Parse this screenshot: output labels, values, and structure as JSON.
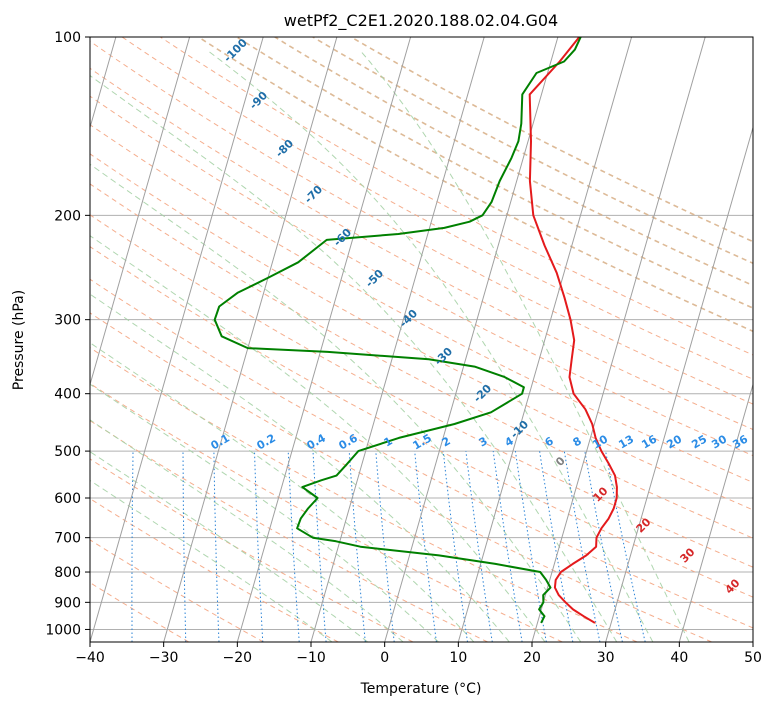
{
  "chart_data": {
    "type": "line",
    "title": "wetPf2_C2E1.2020.188.02.04.G04",
    "xlabel": "Temperature (°C)",
    "ylabel": "Pressure (hPa)",
    "xlim": [
      -40,
      50
    ],
    "ylim": [
      1050,
      100
    ],
    "y_scale": "log",
    "grid": true,
    "x_ticks": [
      -40,
      -30,
      -20,
      -10,
      0,
      10,
      20,
      30,
      40,
      50
    ],
    "y_ticks": [
      100,
      200,
      300,
      400,
      500,
      600,
      700,
      800,
      900,
      1000
    ],
    "series": [
      {
        "color": "#e41a1c",
        "points": [
          [
            27.8,
            975
          ],
          [
            26.0,
            950
          ],
          [
            24.3,
            925
          ],
          [
            23.0,
            900
          ],
          [
            21.8,
            875
          ],
          [
            21.0,
            850
          ],
          [
            20.8,
            825
          ],
          [
            21.2,
            800
          ],
          [
            22.5,
            775
          ],
          [
            24.0,
            750
          ],
          [
            25.0,
            725
          ],
          [
            24.7,
            700
          ],
          [
            25.0,
            675
          ],
          [
            25.6,
            650
          ],
          [
            25.9,
            625
          ],
          [
            25.9,
            600
          ],
          [
            25.5,
            575
          ],
          [
            24.8,
            550
          ],
          [
            23.5,
            525
          ],
          [
            22.0,
            500
          ],
          [
            20.7,
            475
          ],
          [
            19.7,
            450
          ],
          [
            18.2,
            425
          ],
          [
            16.0,
            400
          ],
          [
            14.8,
            375
          ],
          [
            14.4,
            350
          ],
          [
            14.0,
            325
          ],
          [
            12.7,
            300
          ],
          [
            11.0,
            275
          ],
          [
            9.0,
            250
          ],
          [
            6.3,
            225
          ],
          [
            3.6,
            200
          ],
          [
            1.8,
            175
          ],
          [
            0.4,
            150
          ],
          [
            -1.6,
            125
          ],
          [
            1.2,
            110
          ],
          [
            2.9,
            100
          ]
        ]
      },
      {
        "color": "#008000",
        "points": [
          [
            20.5,
            975
          ],
          [
            20.7,
            950
          ],
          [
            19.7,
            925
          ],
          [
            20.0,
            900
          ],
          [
            19.7,
            875
          ],
          [
            20.4,
            850
          ],
          [
            19.5,
            825
          ],
          [
            18.4,
            800
          ],
          [
            12.0,
            775
          ],
          [
            4.0,
            750
          ],
          [
            -7.0,
            725
          ],
          [
            -10.5,
            710
          ],
          [
            -13.8,
            700
          ],
          [
            -16.3,
            675
          ],
          [
            -16.2,
            650
          ],
          [
            -15.6,
            625
          ],
          [
            -14.7,
            600
          ],
          [
            -17.2,
            575
          ],
          [
            -14.9,
            560
          ],
          [
            -13.0,
            550
          ],
          [
            -12.0,
            525
          ],
          [
            -11.0,
            500
          ],
          [
            -6.0,
            475
          ],
          [
            1.0,
            450
          ],
          [
            5.5,
            430
          ],
          [
            9.0,
            400
          ],
          [
            9.0,
            390
          ],
          [
            6.0,
            375
          ],
          [
            1.5,
            360
          ],
          [
            -5.0,
            350
          ],
          [
            -19.0,
            340
          ],
          [
            -30.0,
            335
          ],
          [
            -34.0,
            320
          ],
          [
            -35.6,
            300
          ],
          [
            -35.5,
            285
          ],
          [
            -33.5,
            270
          ],
          [
            -30.0,
            255
          ],
          [
            -26.5,
            240
          ],
          [
            -23.5,
            220
          ],
          [
            -14.0,
            215
          ],
          [
            -8.0,
            210
          ],
          [
            -4.8,
            205
          ],
          [
            -3.3,
            200
          ],
          [
            -2.6,
            190
          ],
          [
            -2.3,
            175
          ],
          [
            -1.6,
            160
          ],
          [
            -1.3,
            150
          ],
          [
            -1.6,
            140
          ],
          [
            -2.6,
            125
          ],
          [
            -1.5,
            115
          ],
          [
            1.8,
            110
          ],
          [
            2.8,
            105
          ],
          [
            3.1,
            100
          ]
        ]
      }
    ],
    "annotations": {
      "mixing_ratio_labels": [
        "0.1",
        "0.2",
        "0.4",
        "0.6",
        "1",
        "1.5",
        "2",
        "3",
        "4",
        "6",
        "8",
        "10",
        "13",
        "16",
        "20",
        "25",
        "30",
        "36"
      ],
      "dry_adiabat_labels": [
        "-100",
        "-90",
        "-80",
        "-70",
        "-60",
        "-50",
        "-40",
        "-30",
        "-20",
        "-10",
        "0",
        "10",
        "20",
        "30",
        "40"
      ]
    }
  }
}
